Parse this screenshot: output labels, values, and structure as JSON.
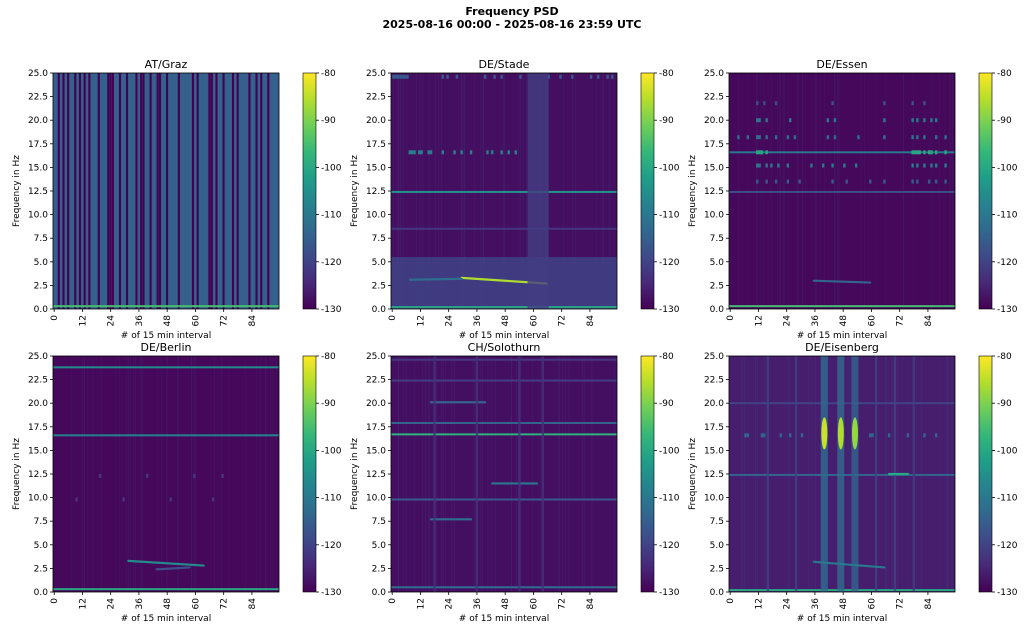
{
  "figure": {
    "title": "Frequency PSD",
    "subtitle": "2025-08-16 00:00 - 2025-08-16 23:59 UTC",
    "colormap": [
      "#440154",
      "#482878",
      "#3e4a89",
      "#31688e",
      "#26828e",
      "#1f9e89",
      "#35b779",
      "#6ece58",
      "#b5de2b",
      "#fde725"
    ]
  },
  "chart_data": [
    {
      "type": "heatmap",
      "title": "AT/Graz",
      "xlabel": "# of 15 min interval",
      "ylabel": "Frequency in Hz",
      "xlim": [
        0,
        96
      ],
      "ylim": [
        0,
        25
      ],
      "xticks": [
        0,
        12,
        24,
        36,
        48,
        60,
        72,
        84
      ],
      "yticks": [
        "0.0",
        "2.5",
        "5.0",
        "7.5",
        "10.0",
        "12.5",
        "15.0",
        "17.5",
        "20.0",
        "22.5",
        "25.0"
      ],
      "colorbar": {
        "ticks": [
          "-80",
          "-90",
          "-100",
          "-110",
          "-120",
          "-130"
        ],
        "range": [
          -130,
          -80
        ]
      },
      "background_db": -115,
      "features": [
        {
          "kind": "dark_columns",
          "x": [
            2,
            4,
            6,
            9,
            11,
            13,
            15,
            19,
            23,
            24,
            25,
            28,
            31,
            35,
            37,
            38,
            41,
            44,
            45,
            48,
            53,
            59,
            61,
            66,
            67,
            69,
            72,
            76,
            78,
            83,
            86,
            88,
            91
          ]
        },
        {
          "kind": "hband",
          "f": 0.3,
          "db": -95
        }
      ]
    },
    {
      "type": "heatmap",
      "title": "DE/Stade",
      "xlabel": "# of 15 min interval",
      "ylabel": "Frequency in Hz",
      "xlim": [
        0,
        96
      ],
      "ylim": [
        0,
        25
      ],
      "xticks": [
        0,
        12,
        24,
        36,
        48,
        60,
        72,
        84
      ],
      "yticks": [
        "0.0",
        "2.5",
        "5.0",
        "7.5",
        "10.0",
        "12.5",
        "15.0",
        "17.5",
        "20.0",
        "22.5",
        "25.0"
      ],
      "colorbar": {
        "ticks": [
          "-80",
          "-90",
          "-100",
          "-110",
          "-120",
          "-130"
        ],
        "range": [
          -130,
          -80
        ]
      },
      "background_db": -128,
      "features": [
        {
          "kind": "lowband",
          "f0": 0,
          "f1": 5.5,
          "db": -120
        },
        {
          "kind": "hband",
          "f": 12.4,
          "db": -104
        },
        {
          "kind": "hband",
          "f": 0.2,
          "db": -100
        },
        {
          "kind": "hband",
          "f": 8.5,
          "db": -122
        },
        {
          "kind": "segment",
          "x0": 30,
          "x1": 66,
          "f0": 3.3,
          "f1": 2.7,
          "db": -86
        },
        {
          "kind": "segment",
          "x0": 8,
          "x1": 30,
          "f0": 3.1,
          "f1": 3.2,
          "db": -112
        },
        {
          "kind": "dots",
          "f": 16.6,
          "x": [
            8,
            9,
            10,
            12,
            13,
            16,
            17,
            22,
            27,
            30,
            34,
            41,
            43,
            47,
            50,
            53
          ],
          "db": -108
        },
        {
          "kind": "dots",
          "f": 24.6,
          "x": [
            1,
            2,
            3,
            4,
            5,
            6,
            7,
            22,
            24,
            28,
            40,
            44,
            47,
            55,
            67,
            72,
            77,
            85,
            88,
            92,
            94
          ],
          "db": -116
        },
        {
          "kind": "vstripe",
          "x0": 58,
          "x1": 67,
          "db": -121
        }
      ]
    },
    {
      "type": "heatmap",
      "title": "DE/Essen",
      "xlabel": "# of 15 min interval",
      "ylabel": "Frequency in Hz",
      "xlim": [
        0,
        96
      ],
      "ylim": [
        0,
        25
      ],
      "xticks": [
        0,
        12,
        24,
        36,
        48,
        60,
        72,
        84
      ],
      "yticks": [
        "0.0",
        "2.5",
        "5.0",
        "7.5",
        "10.0",
        "12.5",
        "15.0",
        "17.5",
        "20.0",
        "22.5",
        "25.0"
      ],
      "colorbar": {
        "ticks": [
          "-80",
          "-90",
          "-100",
          "-110",
          "-120",
          "-130"
        ],
        "range": [
          -130,
          -80
        ]
      },
      "background_db": -129,
      "features": [
        {
          "kind": "hband",
          "f": 0.3,
          "db": -95
        },
        {
          "kind": "hband",
          "f": 12.4,
          "db": -118
        },
        {
          "kind": "hband",
          "f": 16.6,
          "db": -110
        },
        {
          "kind": "segment",
          "x0": 36,
          "x1": 60,
          "f0": 3.0,
          "f1": 2.8,
          "db": -114
        },
        {
          "kind": "dots",
          "f": 18.2,
          "x": [
            4,
            8,
            12,
            13,
            16,
            20,
            25,
            28,
            42,
            45,
            55,
            66,
            78,
            80,
            83,
            88,
            92
          ],
          "db": -112
        },
        {
          "kind": "dots",
          "f": 20.0,
          "x": [
            12,
            13,
            16,
            26,
            42,
            45,
            66,
            78,
            80,
            83,
            86,
            88
          ],
          "db": -110
        },
        {
          "kind": "dots",
          "f": 15.2,
          "x": [
            12,
            13,
            16,
            18,
            21,
            25,
            35,
            40,
            44,
            49,
            54,
            78,
            80,
            83,
            86,
            88,
            92
          ],
          "db": -110
        },
        {
          "kind": "dots",
          "f": 13.5,
          "x": [
            12,
            16,
            20,
            25,
            30,
            44,
            50,
            60,
            66,
            78,
            80,
            85,
            88,
            92
          ],
          "db": -116
        },
        {
          "kind": "dots",
          "f": 21.8,
          "x": [
            12,
            15,
            20,
            44,
            66,
            78,
            83
          ],
          "db": -118
        },
        {
          "kind": "dots",
          "f": 16.6,
          "x": [
            12,
            13,
            14,
            16,
            78,
            79,
            80,
            81,
            83,
            85,
            86,
            88,
            92
          ],
          "db": -100
        }
      ]
    },
    {
      "type": "heatmap",
      "title": "DE/Berlin",
      "xlabel": "# of 15 min interval",
      "ylabel": "Frequency in Hz",
      "xlim": [
        0,
        96
      ],
      "ylim": [
        0,
        25
      ],
      "xticks": [
        0,
        12,
        24,
        36,
        48,
        60,
        72,
        84
      ],
      "yticks": [
        "0.0",
        "2.5",
        "5.0",
        "7.5",
        "10.0",
        "12.5",
        "15.0",
        "17.5",
        "20.0",
        "22.5",
        "25.0"
      ],
      "colorbar": {
        "ticks": [
          "-80",
          "-90",
          "-100",
          "-110",
          "-120",
          "-130"
        ],
        "range": [
          -130,
          -80
        ]
      },
      "background_db": -129,
      "features": [
        {
          "kind": "hband",
          "f": 0.3,
          "db": -100
        },
        {
          "kind": "hband",
          "f": 23.8,
          "db": -106
        },
        {
          "kind": "hband",
          "f": 16.6,
          "db": -108
        },
        {
          "kind": "segment",
          "x0": 32,
          "x1": 64,
          "f0": 3.3,
          "f1": 2.8,
          "db": -106
        },
        {
          "kind": "segment",
          "x0": 44,
          "x1": 58,
          "f0": 2.4,
          "f1": 2.6,
          "db": -118
        },
        {
          "kind": "dots",
          "f": 12.3,
          "x": [
            20,
            40,
            60,
            72
          ],
          "db": -122
        },
        {
          "kind": "dots",
          "f": 9.8,
          "x": [
            10,
            30,
            50,
            68
          ],
          "db": -122
        }
      ]
    },
    {
      "type": "heatmap",
      "title": "CH/Solothurn",
      "xlabel": "# of 15 min interval",
      "ylabel": "Frequency in Hz",
      "xlim": [
        0,
        96
      ],
      "ylim": [
        0,
        25
      ],
      "xticks": [
        0,
        12,
        24,
        36,
        48,
        60,
        72,
        84
      ],
      "yticks": [
        "0.0",
        "2.5",
        "5.0",
        "7.5",
        "10.0",
        "12.5",
        "15.0",
        "17.5",
        "20.0",
        "22.5",
        "25.0"
      ],
      "colorbar": {
        "ticks": [
          "-80",
          "-90",
          "-100",
          "-110",
          "-120",
          "-130"
        ],
        "range": [
          -130,
          -80
        ]
      },
      "background_db": -128,
      "features": [
        {
          "kind": "hband",
          "f": 0.5,
          "db": -112
        },
        {
          "kind": "hband",
          "f": 16.7,
          "db": -98
        },
        {
          "kind": "hband",
          "f": 17.9,
          "db": -114
        },
        {
          "kind": "hband",
          "f": 9.8,
          "db": -116
        },
        {
          "kind": "hband",
          "f": 22.4,
          "db": -121
        },
        {
          "kind": "hband",
          "f": 24.6,
          "db": -122
        },
        {
          "kind": "segment",
          "x0": 17,
          "x1": 40,
          "f0": 20.1,
          "f1": 20.1,
          "db": -114
        },
        {
          "kind": "segment",
          "x0": 17,
          "x1": 34,
          "f0": 7.7,
          "f1": 7.7,
          "db": -112
        },
        {
          "kind": "segment",
          "x0": 43,
          "x1": 62,
          "f0": 11.5,
          "f1": 11.5,
          "db": -110
        },
        {
          "kind": "vstripe",
          "x0": 18,
          "x1": 19,
          "db": -123
        },
        {
          "kind": "vstripe",
          "x0": 36,
          "x1": 37,
          "db": -123
        },
        {
          "kind": "vstripe",
          "x0": 54,
          "x1": 55,
          "db": -123
        },
        {
          "kind": "vstripe",
          "x0": 64,
          "x1": 65,
          "db": -123
        }
      ]
    },
    {
      "type": "heatmap",
      "title": "DE/Eisenberg",
      "xlabel": "# of 15 min interval",
      "ylabel": "Frequency in Hz",
      "xlim": [
        0,
        96
      ],
      "ylim": [
        0,
        25
      ],
      "xticks": [
        0,
        12,
        24,
        36,
        48,
        60,
        72,
        84
      ],
      "yticks": [
        "0.0",
        "2.5",
        "5.0",
        "7.5",
        "10.0",
        "12.5",
        "15.0",
        "17.5",
        "20.0",
        "22.5",
        "25.0"
      ],
      "colorbar": {
        "ticks": [
          "-80",
          "-90",
          "-100",
          "-110",
          "-120",
          "-130"
        ],
        "range": [
          -130,
          -80
        ]
      },
      "background_db": -126,
      "features": [
        {
          "kind": "hband",
          "f": 0.2,
          "db": -100
        },
        {
          "kind": "hband",
          "f": 12.4,
          "db": -114
        },
        {
          "kind": "hband",
          "f": 20.0,
          "db": -120
        },
        {
          "kind": "vstripe",
          "x0": 39,
          "x1": 42,
          "db": -112
        },
        {
          "kind": "vstripe",
          "x0": 46,
          "x1": 49,
          "db": -112
        },
        {
          "kind": "vstripe",
          "x0": 52,
          "x1": 55,
          "db": -114
        },
        {
          "kind": "vstripe",
          "x0": 16,
          "x1": 17,
          "db": -120
        },
        {
          "kind": "vstripe",
          "x0": 28,
          "x1": 29,
          "db": -120
        },
        {
          "kind": "vstripe",
          "x0": 62,
          "x1": 63,
          "db": -120
        },
        {
          "kind": "vstripe",
          "x0": 70,
          "x1": 71,
          "db": -120
        },
        {
          "kind": "vstripe",
          "x0": 78,
          "x1": 79,
          "db": -121
        },
        {
          "kind": "blob",
          "x": 40.5,
          "f": 16.8,
          "db": -84
        },
        {
          "kind": "blob",
          "x": 47.5,
          "f": 16.8,
          "db": -86
        },
        {
          "kind": "blob",
          "x": 53.5,
          "f": 16.8,
          "db": -88
        },
        {
          "kind": "segment",
          "x0": 36,
          "x1": 66,
          "f0": 3.2,
          "f1": 2.6,
          "db": -110
        },
        {
          "kind": "dots",
          "f": 16.6,
          "x": [
            7,
            8,
            14,
            15,
            22,
            26,
            31,
            60,
            61,
            68,
            76,
            83,
            88
          ],
          "db": -114
        },
        {
          "kind": "segment",
          "x0": 68,
          "x1": 76,
          "f0": 12.5,
          "f1": 12.5,
          "db": -100
        }
      ]
    }
  ]
}
